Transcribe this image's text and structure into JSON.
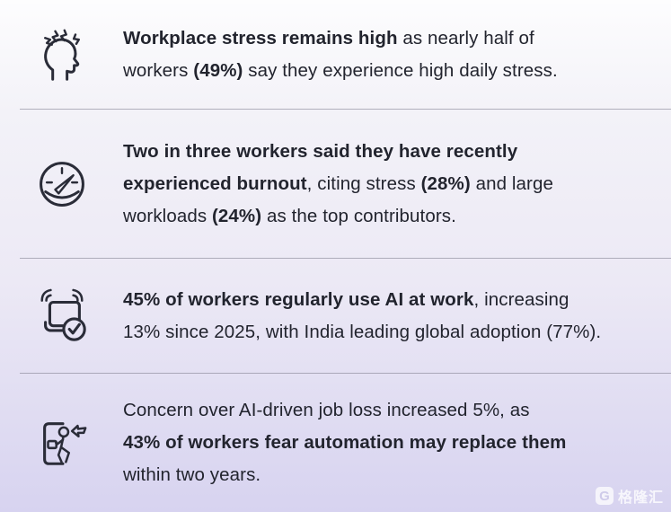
{
  "page": {
    "type": "infographic-stat-list",
    "colors": {
      "background_top": "#fdfdfe",
      "background_bottom": "#d7d3f0",
      "text": "#22242e",
      "divider": "rgba(112,109,128,0.5)",
      "icon_stroke": "#2a2c38"
    }
  },
  "rows": [
    {
      "id": "workplace-stress",
      "icon": "stressed-head-icon",
      "lines": [
        [
          {
            "text": "Workplace stress remains high",
            "bold": true
          },
          {
            "text": " as nearly half of",
            "bold": false
          }
        ],
        [
          {
            "text": "workers ",
            "bold": false
          },
          {
            "text": "(49%)",
            "bold": true
          },
          {
            "text": " say they experience high daily stress.",
            "bold": false
          }
        ]
      ]
    },
    {
      "id": "burnout",
      "icon": "gauge-icon",
      "lines": [
        [
          {
            "text": "Two in three workers said they have recently",
            "bold": true
          }
        ],
        [
          {
            "text": "experienced burnout",
            "bold": true
          },
          {
            "text": ", citing stress ",
            "bold": false
          },
          {
            "text": "(28%)",
            "bold": true
          },
          {
            "text": " and large",
            "bold": false
          }
        ],
        [
          {
            "text": "workloads ",
            "bold": false
          },
          {
            "text": "(24%)",
            "bold": true
          },
          {
            "text": " as the top contributors.",
            "bold": false
          }
        ]
      ]
    },
    {
      "id": "ai-usage",
      "icon": "laptop-check-icon",
      "lines": [
        [
          {
            "text": "45% of workers regularly use AI at work",
            "bold": true
          },
          {
            "text": ", increasing",
            "bold": false
          }
        ],
        [
          {
            "text": "13% since 2025, with India leading global adoption (77%).",
            "bold": false
          }
        ]
      ]
    },
    {
      "id": "ai-job-loss-fear",
      "icon": "exit-door-icon",
      "lines": [
        [
          {
            "text": "Concern over AI-driven job loss increased 5%, as",
            "bold": false
          }
        ],
        [
          {
            "text": "43% of workers fear automation may replace them",
            "bold": true
          }
        ],
        [
          {
            "text": "within two years.",
            "bold": false
          }
        ]
      ]
    }
  ],
  "watermark": {
    "logo_letter": "G",
    "brand": "格隆汇"
  }
}
